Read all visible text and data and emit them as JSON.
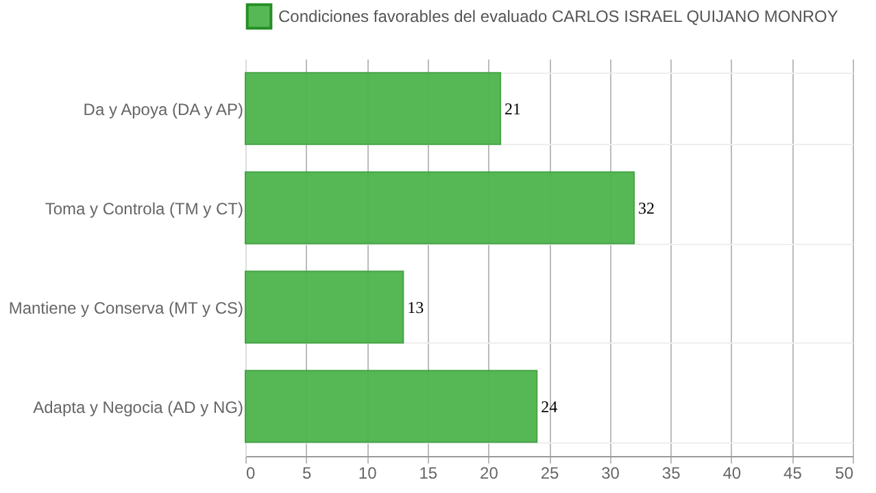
{
  "chart_data": {
    "type": "bar",
    "orientation": "horizontal",
    "categories": [
      "Da y Apoya (DA y AP)",
      "Toma y Controla (TM y CT)",
      "Mantiene y Conserva (MT y CS)",
      "Adapta y Negocia (AD y NG)"
    ],
    "series": [
      {
        "name": "Condiciones favorables del evaluado CARLOS ISRAEL QUIJANO MONROY",
        "color": "#4cb54c",
        "values": [
          21,
          32,
          13,
          24
        ]
      }
    ],
    "xlim": [
      0,
      50
    ],
    "xticks": [
      0,
      5,
      10,
      15,
      20,
      25,
      30,
      35,
      40,
      45,
      50
    ],
    "grid": true,
    "legend": "top",
    "data_labels": true
  }
}
